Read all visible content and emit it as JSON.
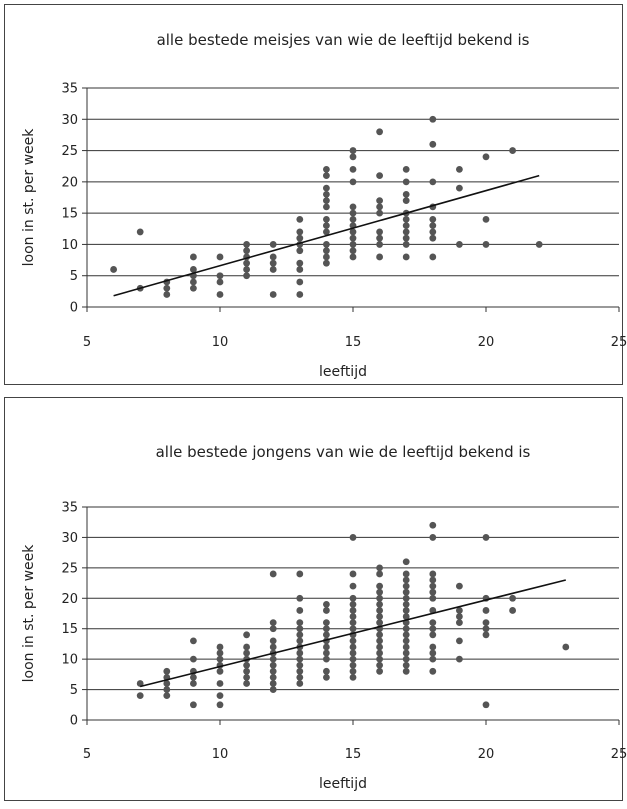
{
  "chart_data": [
    {
      "type": "scatter",
      "title": "alle bestede meisjes van wie de leeftijd bekend is",
      "xlabel": "leeftijd",
      "ylabel": "loon in st. per week",
      "xlim": [
        5,
        25
      ],
      "ylim": [
        0,
        35
      ],
      "xticks": [
        5,
        10,
        15,
        20,
        25
      ],
      "yticks": [
        0,
        5,
        10,
        15,
        20,
        25,
        30,
        35
      ],
      "grid": "horizontal",
      "legend": "none",
      "point_color": "#555555",
      "trendline": {
        "x": [
          6,
          22
        ],
        "y": [
          1.8,
          21
        ]
      },
      "points": [
        [
          6,
          6
        ],
        [
          7,
          12
        ],
        [
          7,
          3
        ],
        [
          8,
          4
        ],
        [
          8,
          3
        ],
        [
          8,
          2
        ],
        [
          9,
          8
        ],
        [
          9,
          6
        ],
        [
          9,
          5
        ],
        [
          9,
          4
        ],
        [
          9,
          3
        ],
        [
          10,
          8
        ],
        [
          10,
          5
        ],
        [
          10,
          4
        ],
        [
          10,
          2
        ],
        [
          11,
          10
        ],
        [
          11,
          9
        ],
        [
          11,
          8
        ],
        [
          11,
          7
        ],
        [
          11,
          6
        ],
        [
          11,
          5
        ],
        [
          12,
          10
        ],
        [
          12,
          8
        ],
        [
          12,
          7
        ],
        [
          12,
          6
        ],
        [
          12,
          2
        ],
        [
          13,
          14
        ],
        [
          13,
          12
        ],
        [
          13,
          11
        ],
        [
          13,
          10
        ],
        [
          13,
          9
        ],
        [
          13,
          7
        ],
        [
          13,
          6
        ],
        [
          13,
          4
        ],
        [
          13,
          2
        ],
        [
          14,
          22
        ],
        [
          14,
          21
        ],
        [
          14,
          19
        ],
        [
          14,
          18
        ],
        [
          14,
          17
        ],
        [
          14,
          16
        ],
        [
          14,
          14
        ],
        [
          14,
          13
        ],
        [
          14,
          12
        ],
        [
          14,
          10
        ],
        [
          14,
          9
        ],
        [
          14,
          8
        ],
        [
          14,
          7
        ],
        [
          15,
          25
        ],
        [
          15,
          24
        ],
        [
          15,
          22
        ],
        [
          15,
          20
        ],
        [
          15,
          16
        ],
        [
          15,
          15
        ],
        [
          15,
          14
        ],
        [
          15,
          13
        ],
        [
          15,
          12
        ],
        [
          15,
          11
        ],
        [
          15,
          10
        ],
        [
          15,
          9
        ],
        [
          15,
          8
        ],
        [
          16,
          28
        ],
        [
          16,
          21
        ],
        [
          16,
          17
        ],
        [
          16,
          16
        ],
        [
          16,
          15
        ],
        [
          16,
          12
        ],
        [
          16,
          11
        ],
        [
          16,
          10
        ],
        [
          16,
          8
        ],
        [
          17,
          22
        ],
        [
          17,
          20
        ],
        [
          17,
          18
        ],
        [
          17,
          17
        ],
        [
          17,
          15
        ],
        [
          17,
          14
        ],
        [
          17,
          13
        ],
        [
          17,
          12
        ],
        [
          17,
          11
        ],
        [
          17,
          10
        ],
        [
          17,
          8
        ],
        [
          18,
          30
        ],
        [
          18,
          26
        ],
        [
          18,
          20
        ],
        [
          18,
          16
        ],
        [
          18,
          14
        ],
        [
          18,
          13
        ],
        [
          18,
          12
        ],
        [
          18,
          11
        ],
        [
          18,
          8
        ],
        [
          19,
          22
        ],
        [
          19,
          19
        ],
        [
          19,
          10
        ],
        [
          20,
          24
        ],
        [
          20,
          14
        ],
        [
          20,
          10
        ],
        [
          21,
          25
        ],
        [
          22,
          10
        ]
      ]
    },
    {
      "type": "scatter",
      "title": "alle bestede jongens van wie de leeftijd bekend is",
      "xlabel": "leeftijd",
      "ylabel": "loon in st. per week",
      "xlim": [
        5,
        25
      ],
      "ylim": [
        0,
        35
      ],
      "xticks": [
        5,
        10,
        15,
        20,
        25
      ],
      "yticks": [
        0,
        5,
        10,
        15,
        20,
        25,
        30,
        35
      ],
      "grid": "horizontal",
      "legend": "none",
      "point_color": "#555555",
      "trendline": {
        "x": [
          7,
          23
        ],
        "y": [
          5.5,
          23
        ]
      },
      "points": [
        [
          7,
          6
        ],
        [
          7,
          4
        ],
        [
          8,
          8
        ],
        [
          8,
          7
        ],
        [
          8,
          6
        ],
        [
          8,
          5
        ],
        [
          8,
          4
        ],
        [
          9,
          13
        ],
        [
          9,
          10
        ],
        [
          9,
          8
        ],
        [
          9,
          7
        ],
        [
          9,
          6
        ],
        [
          9,
          2.5
        ],
        [
          10,
          12
        ],
        [
          10,
          11
        ],
        [
          10,
          10
        ],
        [
          10,
          9
        ],
        [
          10,
          8
        ],
        [
          10,
          6
        ],
        [
          10,
          4
        ],
        [
          10,
          2.5
        ],
        [
          11,
          14
        ],
        [
          11,
          12
        ],
        [
          11,
          11
        ],
        [
          11,
          10
        ],
        [
          11,
          9
        ],
        [
          11,
          8
        ],
        [
          11,
          7
        ],
        [
          11,
          6
        ],
        [
          12,
          24
        ],
        [
          12,
          16
        ],
        [
          12,
          15
        ],
        [
          12,
          13
        ],
        [
          12,
          12
        ],
        [
          12,
          11
        ],
        [
          12,
          10
        ],
        [
          12,
          9
        ],
        [
          12,
          8
        ],
        [
          12,
          7
        ],
        [
          12,
          6
        ],
        [
          12,
          5
        ],
        [
          13,
          24
        ],
        [
          13,
          20
        ],
        [
          13,
          18
        ],
        [
          13,
          16
        ],
        [
          13,
          15
        ],
        [
          13,
          14
        ],
        [
          13,
          13
        ],
        [
          13,
          12
        ],
        [
          13,
          11
        ],
        [
          13,
          10
        ],
        [
          13,
          9
        ],
        [
          13,
          8
        ],
        [
          13,
          7
        ],
        [
          13,
          6
        ],
        [
          14,
          19
        ],
        [
          14,
          18
        ],
        [
          14,
          16
        ],
        [
          14,
          15
        ],
        [
          14,
          14
        ],
        [
          14,
          13
        ],
        [
          14,
          12
        ],
        [
          14,
          11
        ],
        [
          14,
          10
        ],
        [
          14,
          8
        ],
        [
          14,
          7
        ],
        [
          15,
          30
        ],
        [
          15,
          24
        ],
        [
          15,
          22
        ],
        [
          15,
          20
        ],
        [
          15,
          19
        ],
        [
          15,
          18
        ],
        [
          15,
          17
        ],
        [
          15,
          16
        ],
        [
          15,
          15
        ],
        [
          15,
          14
        ],
        [
          15,
          13
        ],
        [
          15,
          12
        ],
        [
          15,
          11
        ],
        [
          15,
          10
        ],
        [
          15,
          9
        ],
        [
          15,
          8
        ],
        [
          15,
          7
        ],
        [
          16,
          25
        ],
        [
          16,
          24
        ],
        [
          16,
          22
        ],
        [
          16,
          21
        ],
        [
          16,
          20
        ],
        [
          16,
          19
        ],
        [
          16,
          18
        ],
        [
          16,
          17
        ],
        [
          16,
          16
        ],
        [
          16,
          15
        ],
        [
          16,
          14
        ],
        [
          16,
          13
        ],
        [
          16,
          12
        ],
        [
          16,
          11
        ],
        [
          16,
          10
        ],
        [
          16,
          9
        ],
        [
          16,
          8
        ],
        [
          17,
          26
        ],
        [
          17,
          24
        ],
        [
          17,
          23
        ],
        [
          17,
          22
        ],
        [
          17,
          21
        ],
        [
          17,
          20
        ],
        [
          17,
          19
        ],
        [
          17,
          18
        ],
        [
          17,
          17
        ],
        [
          17,
          16
        ],
        [
          17,
          15
        ],
        [
          17,
          14
        ],
        [
          17,
          13
        ],
        [
          17,
          12
        ],
        [
          17,
          11
        ],
        [
          17,
          10
        ],
        [
          17,
          9
        ],
        [
          17,
          8
        ],
        [
          18,
          32
        ],
        [
          18,
          30
        ],
        [
          18,
          24
        ],
        [
          18,
          23
        ],
        [
          18,
          22
        ],
        [
          18,
          21
        ],
        [
          18,
          20
        ],
        [
          18,
          18
        ],
        [
          18,
          16
        ],
        [
          18,
          15
        ],
        [
          18,
          14
        ],
        [
          18,
          12
        ],
        [
          18,
          11
        ],
        [
          18,
          10
        ],
        [
          18,
          8
        ],
        [
          19,
          22
        ],
        [
          19,
          18
        ],
        [
          19,
          17
        ],
        [
          19,
          16
        ],
        [
          19,
          13
        ],
        [
          19,
          10
        ],
        [
          20,
          30
        ],
        [
          20,
          20
        ],
        [
          20,
          18
        ],
        [
          20,
          16
        ],
        [
          20,
          15
        ],
        [
          20,
          14
        ],
        [
          20,
          2.5
        ],
        [
          21,
          20
        ],
        [
          21,
          18
        ],
        [
          23,
          12
        ]
      ]
    }
  ]
}
